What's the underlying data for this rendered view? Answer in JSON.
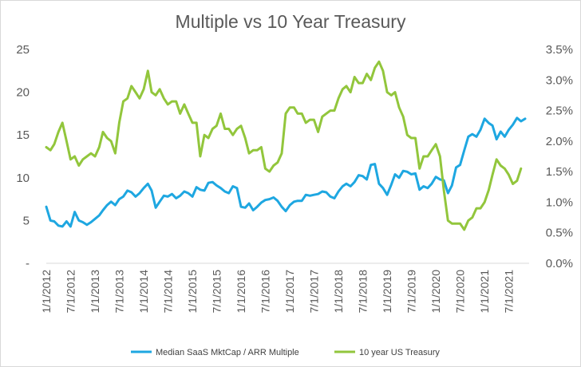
{
  "chart_data": {
    "type": "line",
    "title": "Multiple vs 10 Year Treasury",
    "x_tick_labels": [
      "1/1/2012",
      "7/1/2012",
      "1/1/2013",
      "7/1/2013",
      "1/1/2014",
      "7/1/2014",
      "1/1/2015",
      "7/1/2015",
      "1/1/2016",
      "7/1/2016",
      "1/1/2017",
      "7/1/2017",
      "1/1/2018",
      "7/1/2018",
      "1/1/2019",
      "7/1/2019",
      "1/1/2020",
      "7/1/2020",
      "1/1/2021",
      "7/1/2021"
    ],
    "x_range": [
      "2012-01-01",
      "2021-12-01"
    ],
    "y_left": {
      "ticks": [
        "-",
        "5",
        "10",
        "15",
        "20",
        "25"
      ],
      "range": [
        0,
        25
      ]
    },
    "y_right": {
      "ticks": [
        "0.0%",
        "0.5%",
        "1.0%",
        "1.5%",
        "2.0%",
        "2.5%",
        "3.0%",
        "3.5%"
      ],
      "range": [
        0,
        3.5
      ]
    },
    "legend_position": "bottom",
    "grid": false,
    "series": [
      {
        "name": "Median SaaS MktCap / ARR Multiple",
        "axis": "left",
        "color": "#1ea7e1",
        "points": [
          [
            "2012-01-01",
            6.6
          ],
          [
            "2012-02-01",
            5.0
          ],
          [
            "2012-03-01",
            4.9
          ],
          [
            "2012-04-01",
            4.4
          ],
          [
            "2012-05-01",
            4.3
          ],
          [
            "2012-06-01",
            4.9
          ],
          [
            "2012-07-01",
            4.3
          ],
          [
            "2012-08-01",
            6.0
          ],
          [
            "2012-09-01",
            5.0
          ],
          [
            "2012-10-01",
            4.8
          ],
          [
            "2012-11-01",
            4.5
          ],
          [
            "2012-12-01",
            4.8
          ],
          [
            "2013-01-01",
            5.2
          ],
          [
            "2013-02-01",
            5.6
          ],
          [
            "2013-03-01",
            6.2
          ],
          [
            "2013-04-01",
            6.8
          ],
          [
            "2013-05-01",
            7.2
          ],
          [
            "2013-06-01",
            6.8
          ],
          [
            "2013-07-01",
            7.5
          ],
          [
            "2013-08-01",
            7.8
          ],
          [
            "2013-09-01",
            8.5
          ],
          [
            "2013-10-01",
            8.3
          ],
          [
            "2013-11-01",
            7.8
          ],
          [
            "2013-12-01",
            8.2
          ],
          [
            "2014-01-01",
            8.8
          ],
          [
            "2014-02-01",
            9.3
          ],
          [
            "2014-03-01",
            8.5
          ],
          [
            "2014-04-01",
            6.5
          ],
          [
            "2014-05-01",
            7.2
          ],
          [
            "2014-06-01",
            7.9
          ],
          [
            "2014-07-01",
            7.8
          ],
          [
            "2014-08-01",
            8.1
          ],
          [
            "2014-09-01",
            7.6
          ],
          [
            "2014-10-01",
            7.9
          ],
          [
            "2014-11-01",
            8.4
          ],
          [
            "2014-12-01",
            8.2
          ],
          [
            "2015-01-01",
            7.8
          ],
          [
            "2015-02-01",
            8.9
          ],
          [
            "2015-03-01",
            8.6
          ],
          [
            "2015-04-01",
            8.5
          ],
          [
            "2015-05-01",
            9.4
          ],
          [
            "2015-06-01",
            9.5
          ],
          [
            "2015-07-01",
            9.1
          ],
          [
            "2015-08-01",
            8.8
          ],
          [
            "2015-09-01",
            8.4
          ],
          [
            "2015-10-01",
            8.2
          ],
          [
            "2015-11-01",
            9.0
          ],
          [
            "2015-12-01",
            8.8
          ],
          [
            "2016-01-01",
            6.6
          ],
          [
            "2016-02-01",
            6.5
          ],
          [
            "2016-03-01",
            7.0
          ],
          [
            "2016-04-01",
            6.2
          ],
          [
            "2016-05-01",
            6.6
          ],
          [
            "2016-06-01",
            7.1
          ],
          [
            "2016-07-01",
            7.4
          ],
          [
            "2016-08-01",
            7.5
          ],
          [
            "2016-09-01",
            7.7
          ],
          [
            "2016-10-01",
            7.3
          ],
          [
            "2016-11-01",
            6.6
          ],
          [
            "2016-12-01",
            6.1
          ],
          [
            "2017-01-01",
            6.8
          ],
          [
            "2017-02-01",
            7.2
          ],
          [
            "2017-03-01",
            7.3
          ],
          [
            "2017-04-01",
            7.3
          ],
          [
            "2017-05-01",
            8.0
          ],
          [
            "2017-06-01",
            7.9
          ],
          [
            "2017-07-01",
            8.0
          ],
          [
            "2017-08-01",
            8.1
          ],
          [
            "2017-09-01",
            8.4
          ],
          [
            "2017-10-01",
            8.3
          ],
          [
            "2017-11-01",
            7.8
          ],
          [
            "2017-12-01",
            7.6
          ],
          [
            "2018-01-01",
            8.4
          ],
          [
            "2018-02-01",
            9.0
          ],
          [
            "2018-03-01",
            9.3
          ],
          [
            "2018-04-01",
            9.0
          ],
          [
            "2018-05-01",
            9.5
          ],
          [
            "2018-06-01",
            10.3
          ],
          [
            "2018-07-01",
            10.2
          ],
          [
            "2018-08-01",
            9.8
          ],
          [
            "2018-09-01",
            11.5
          ],
          [
            "2018-10-01",
            11.6
          ],
          [
            "2018-11-01",
            9.3
          ],
          [
            "2018-12-01",
            8.8
          ],
          [
            "2019-01-01",
            8.0
          ],
          [
            "2019-02-01",
            9.2
          ],
          [
            "2019-03-01",
            10.4
          ],
          [
            "2019-04-01",
            10.0
          ],
          [
            "2019-05-01",
            10.8
          ],
          [
            "2019-06-01",
            10.7
          ],
          [
            "2019-07-01",
            10.4
          ],
          [
            "2019-08-01",
            10.5
          ],
          [
            "2019-09-01",
            8.6
          ],
          [
            "2019-10-01",
            9.0
          ],
          [
            "2019-11-01",
            8.8
          ],
          [
            "2019-12-01",
            9.3
          ],
          [
            "2020-01-01",
            10.1
          ],
          [
            "2020-02-01",
            9.8
          ],
          [
            "2020-03-01",
            9.7
          ],
          [
            "2020-04-01",
            8.2
          ],
          [
            "2020-05-01",
            9.1
          ],
          [
            "2020-06-01",
            11.2
          ],
          [
            "2020-07-01",
            11.5
          ],
          [
            "2020-08-01",
            13.2
          ],
          [
            "2020-09-01",
            14.8
          ],
          [
            "2020-10-01",
            15.1
          ],
          [
            "2020-11-01",
            14.8
          ],
          [
            "2020-12-01",
            15.6
          ],
          [
            "2021-01-01",
            16.9
          ],
          [
            "2021-02-01",
            16.4
          ],
          [
            "2021-03-01",
            16.1
          ],
          [
            "2021-04-01",
            14.5
          ],
          [
            "2021-05-01",
            15.4
          ],
          [
            "2021-06-01",
            14.8
          ],
          [
            "2021-07-01",
            15.6
          ],
          [
            "2021-08-01",
            16.2
          ],
          [
            "2021-09-01",
            17.0
          ],
          [
            "2021-10-01",
            16.6
          ],
          [
            "2021-11-01",
            16.9
          ]
        ]
      },
      {
        "name": "10 year US Treasury",
        "axis": "right",
        "color": "#92c63c",
        "points": [
          [
            "2012-01-01",
            1.9
          ],
          [
            "2012-02-01",
            1.85
          ],
          [
            "2012-03-01",
            1.95
          ],
          [
            "2012-04-01",
            2.15
          ],
          [
            "2012-05-01",
            2.3
          ],
          [
            "2012-06-01",
            2.0
          ],
          [
            "2012-07-01",
            1.7
          ],
          [
            "2012-08-01",
            1.75
          ],
          [
            "2012-09-01",
            1.6
          ],
          [
            "2012-10-01",
            1.7
          ],
          [
            "2012-11-01",
            1.75
          ],
          [
            "2012-12-01",
            1.8
          ],
          [
            "2013-01-01",
            1.75
          ],
          [
            "2013-02-01",
            1.9
          ],
          [
            "2013-03-01",
            2.15
          ],
          [
            "2013-04-01",
            2.05
          ],
          [
            "2013-05-01",
            2.0
          ],
          [
            "2013-06-01",
            1.8
          ],
          [
            "2013-07-01",
            2.3
          ],
          [
            "2013-08-01",
            2.65
          ],
          [
            "2013-09-01",
            2.7
          ],
          [
            "2013-10-01",
            2.9
          ],
          [
            "2013-11-01",
            2.8
          ],
          [
            "2013-12-01",
            2.7
          ],
          [
            "2014-01-01",
            2.85
          ],
          [
            "2014-02-01",
            3.15
          ],
          [
            "2014-03-01",
            2.8
          ],
          [
            "2014-04-01",
            2.75
          ],
          [
            "2014-05-01",
            2.85
          ],
          [
            "2014-06-01",
            2.7
          ],
          [
            "2014-07-01",
            2.6
          ],
          [
            "2014-08-01",
            2.65
          ],
          [
            "2014-09-01",
            2.65
          ],
          [
            "2014-10-01",
            2.45
          ],
          [
            "2014-11-01",
            2.6
          ],
          [
            "2014-12-01",
            2.45
          ],
          [
            "2015-01-01",
            2.3
          ],
          [
            "2015-02-01",
            2.3
          ],
          [
            "2015-03-01",
            1.75
          ],
          [
            "2015-04-01",
            2.1
          ],
          [
            "2015-05-01",
            2.05
          ],
          [
            "2015-06-01",
            2.2
          ],
          [
            "2015-07-01",
            2.25
          ],
          [
            "2015-08-01",
            2.45
          ],
          [
            "2015-09-01",
            2.2
          ],
          [
            "2015-10-01",
            2.2
          ],
          [
            "2015-11-01",
            2.1
          ],
          [
            "2015-12-01",
            2.2
          ],
          [
            "2016-01-01",
            2.25
          ],
          [
            "2016-02-01",
            2.05
          ],
          [
            "2016-03-01",
            1.8
          ],
          [
            "2016-04-01",
            1.85
          ],
          [
            "2016-05-01",
            1.85
          ],
          [
            "2016-06-01",
            1.9
          ],
          [
            "2016-07-01",
            1.55
          ],
          [
            "2016-08-01",
            1.5
          ],
          [
            "2016-09-01",
            1.6
          ],
          [
            "2016-10-01",
            1.65
          ],
          [
            "2016-11-01",
            1.8
          ],
          [
            "2016-12-01",
            2.45
          ],
          [
            "2017-01-01",
            2.55
          ],
          [
            "2017-02-01",
            2.55
          ],
          [
            "2017-03-01",
            2.45
          ],
          [
            "2017-04-01",
            2.45
          ],
          [
            "2017-05-01",
            2.3
          ],
          [
            "2017-06-01",
            2.35
          ],
          [
            "2017-07-01",
            2.35
          ],
          [
            "2017-08-01",
            2.15
          ],
          [
            "2017-09-01",
            2.4
          ],
          [
            "2017-10-01",
            2.45
          ],
          [
            "2017-11-01",
            2.5
          ],
          [
            "2017-12-01",
            2.5
          ],
          [
            "2018-01-01",
            2.7
          ],
          [
            "2018-02-01",
            2.85
          ],
          [
            "2018-03-01",
            2.9
          ],
          [
            "2018-04-01",
            2.8
          ],
          [
            "2018-05-01",
            3.05
          ],
          [
            "2018-06-01",
            2.95
          ],
          [
            "2018-07-01",
            2.95
          ],
          [
            "2018-08-01",
            3.1
          ],
          [
            "2018-09-01",
            3.0
          ],
          [
            "2018-10-01",
            3.2
          ],
          [
            "2018-11-01",
            3.3
          ],
          [
            "2018-12-01",
            3.15
          ],
          [
            "2019-01-01",
            2.8
          ],
          [
            "2019-02-01",
            2.75
          ],
          [
            "2019-03-01",
            2.8
          ],
          [
            "2019-04-01",
            2.55
          ],
          [
            "2019-05-01",
            2.4
          ],
          [
            "2019-06-01",
            2.1
          ],
          [
            "2019-07-01",
            2.05
          ],
          [
            "2019-08-01",
            2.05
          ],
          [
            "2019-09-01",
            1.55
          ],
          [
            "2019-10-01",
            1.75
          ],
          [
            "2019-11-01",
            1.75
          ],
          [
            "2019-12-01",
            1.85
          ],
          [
            "2020-01-01",
            1.95
          ],
          [
            "2020-02-01",
            1.75
          ],
          [
            "2020-03-01",
            1.2
          ],
          [
            "2020-04-01",
            0.7
          ],
          [
            "2020-05-01",
            0.65
          ],
          [
            "2020-06-01",
            0.65
          ],
          [
            "2020-07-01",
            0.65
          ],
          [
            "2020-08-01",
            0.55
          ],
          [
            "2020-09-01",
            0.7
          ],
          [
            "2020-10-01",
            0.75
          ],
          [
            "2020-11-01",
            0.9
          ],
          [
            "2020-12-01",
            0.9
          ],
          [
            "2021-01-01",
            1.0
          ],
          [
            "2021-02-01",
            1.2
          ],
          [
            "2021-03-01",
            1.45
          ],
          [
            "2021-04-01",
            1.7
          ],
          [
            "2021-05-01",
            1.6
          ],
          [
            "2021-06-01",
            1.55
          ],
          [
            "2021-07-01",
            1.45
          ],
          [
            "2021-08-01",
            1.3
          ],
          [
            "2021-09-01",
            1.35
          ],
          [
            "2021-10-01",
            1.55
          ]
        ]
      }
    ]
  }
}
